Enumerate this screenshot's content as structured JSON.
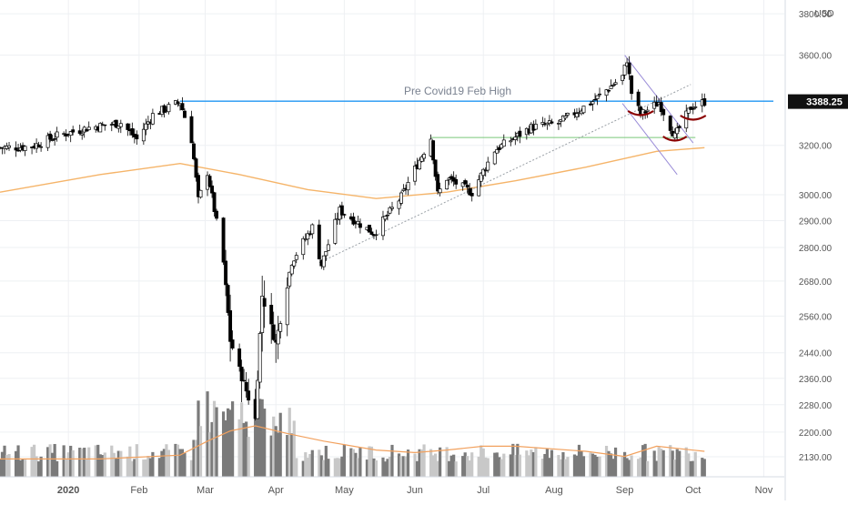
{
  "currency": "USD",
  "last_price_label": "3388.25",
  "annotation": "Pre Covid19 Feb High",
  "colors": {
    "up": "#ffffff",
    "down": "#000000",
    "wick": "#000000",
    "resistance": "#2196f3",
    "support": "#7ac87a",
    "ma": "#f5b469",
    "vol_ma": "#f2a15e",
    "vol_dark": "#7a7a7a",
    "vol_light": "#c8c8c8",
    "channel": "#9a8cd8",
    "trend": "#9aa0a6",
    "pattern": "#8b0000",
    "grid": "#eef0f3",
    "axis_text": "#555555"
  },
  "chart_data": {
    "type": "candlestick",
    "title": "",
    "x_ticks": [
      "2020",
      "Feb",
      "Mar",
      "Apr",
      "May",
      "Jun",
      "Jul",
      "Aug",
      "Sep",
      "Oct",
      "Nov"
    ],
    "y_ticks": [
      2130,
      2200,
      2280,
      2360,
      2440,
      2560,
      2680,
      2800,
      2900,
      3000,
      3200,
      3600,
      3800
    ],
    "y_tick_labels": [
      "2130.00",
      "2200.00",
      "2280.00",
      "2360.00",
      "2440.00",
      "2560.00",
      "2680.00",
      "2800.00",
      "2900.00",
      "3000.00",
      "3200.00",
      "3600.00",
      "3800.00"
    ],
    "y_scale": "log",
    "ylim": [
      2080,
      3860
    ],
    "last_price": 3388.25,
    "resistance_level": 3390,
    "support_level": 3233,
    "x_domain": [
      "2019-12-02",
      "2020-11-10"
    ],
    "close_path": [
      [
        "2019-12-02",
        3190
      ],
      [
        "2019-12-16",
        3195
      ],
      [
        "2019-12-27",
        3240
      ],
      [
        "2020-01-10",
        3275
      ],
      [
        "2020-01-24",
        3295
      ],
      [
        "2020-01-31",
        3225
      ],
      [
        "2020-02-07",
        3330
      ],
      [
        "2020-02-19",
        3386
      ],
      [
        "2020-02-24",
        3225
      ],
      [
        "2020-02-27",
        2978
      ],
      [
        "2020-03-02",
        3090
      ],
      [
        "2020-03-09",
        2745
      ],
      [
        "2020-03-12",
        2480
      ],
      [
        "2020-03-16",
        2386
      ],
      [
        "2020-03-23",
        2237
      ],
      [
        "2020-03-26",
        2630
      ],
      [
        "2020-04-01",
        2470
      ],
      [
        "2020-04-08",
        2750
      ],
      [
        "2020-04-17",
        2875
      ],
      [
        "2020-04-21",
        2737
      ],
      [
        "2020-04-29",
        2939
      ],
      [
        "2020-05-14",
        2852
      ],
      [
        "2020-05-26",
        2991
      ],
      [
        "2020-06-08",
        3232
      ],
      [
        "2020-06-11",
        3002
      ],
      [
        "2020-06-15",
        3066
      ],
      [
        "2020-06-26",
        3009
      ],
      [
        "2020-07-06",
        3180
      ],
      [
        "2020-07-22",
        3276
      ],
      [
        "2020-08-03",
        3294
      ],
      [
        "2020-08-18",
        3389
      ],
      [
        "2020-08-31",
        3500
      ],
      [
        "2020-09-02",
        3580
      ],
      [
        "2020-09-04",
        3427
      ],
      [
        "2020-09-08",
        3331
      ],
      [
        "2020-09-16",
        3385
      ],
      [
        "2020-09-23",
        3237
      ],
      [
        "2020-09-30",
        3363
      ],
      [
        "2020-10-06",
        3388
      ]
    ],
    "ma_path": [
      [
        "2019-12-02",
        3010
      ],
      [
        "2020-01-15",
        3080
      ],
      [
        "2020-02-19",
        3125
      ],
      [
        "2020-03-16",
        3080
      ],
      [
        "2020-04-15",
        3020
      ],
      [
        "2020-05-15",
        2985
      ],
      [
        "2020-06-15",
        3010
      ],
      [
        "2020-07-15",
        3055
      ],
      [
        "2020-08-15",
        3110
      ],
      [
        "2020-09-15",
        3175
      ],
      [
        "2020-10-06",
        3190
      ]
    ],
    "volume_ma_path": [
      [
        "2019-12-02",
        0.14
      ],
      [
        "2020-01-15",
        0.14
      ],
      [
        "2020-02-19",
        0.17
      ],
      [
        "2020-03-02",
        0.28
      ],
      [
        "2020-03-12",
        0.36
      ],
      [
        "2020-03-23",
        0.4
      ],
      [
        "2020-04-06",
        0.34
      ],
      [
        "2020-04-22",
        0.28
      ],
      [
        "2020-05-15",
        0.21
      ],
      [
        "2020-06-01",
        0.19
      ],
      [
        "2020-06-15",
        0.21
      ],
      [
        "2020-07-01",
        0.24
      ],
      [
        "2020-07-15",
        0.24
      ],
      [
        "2020-08-15",
        0.2
      ],
      [
        "2020-09-01",
        0.16
      ],
      [
        "2020-09-15",
        0.24
      ],
      [
        "2020-10-06",
        0.2
      ]
    ],
    "channel_lines": [
      {
        "name": "channel-upper",
        "points": [
          [
            "2020-09-01",
            3600
          ],
          [
            "2020-10-01",
            3210
          ]
        ]
      },
      {
        "name": "channel-lower",
        "points": [
          [
            "2020-08-31",
            3380
          ],
          [
            "2020-09-24",
            3080
          ]
        ]
      },
      {
        "name": "trend-line",
        "points": [
          [
            "2020-04-20",
            2745
          ],
          [
            "2020-09-30",
            3465
          ]
        ]
      }
    ]
  }
}
